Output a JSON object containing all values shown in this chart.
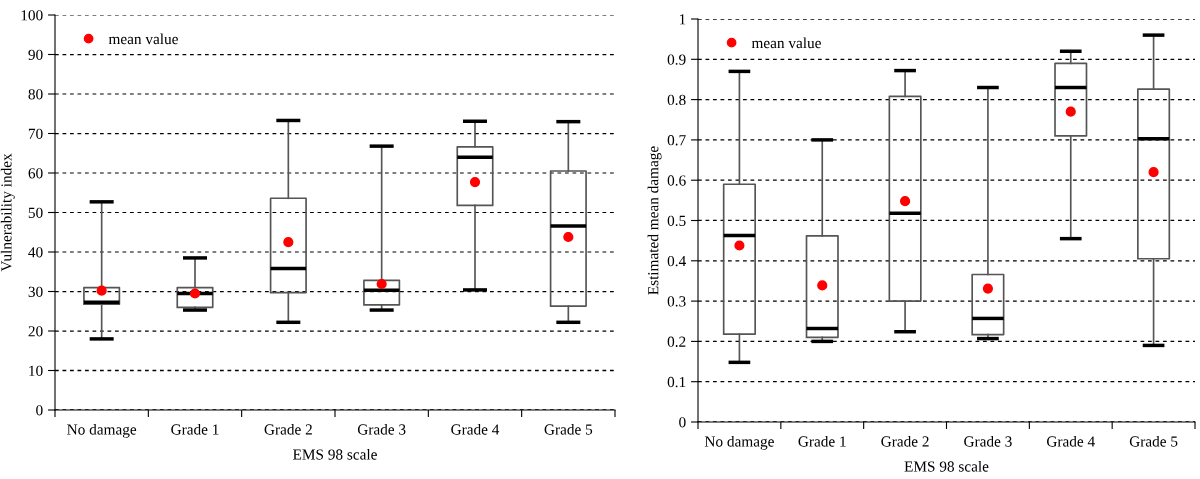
{
  "chart_data": [
    {
      "type": "box",
      "xlabel": "EMS 98 scale",
      "ylabel": "Vulnerability index",
      "categories": [
        "No damage",
        "Grade 1",
        "Grade 2",
        "Grade 3",
        "Grade 4",
        "Grade 5"
      ],
      "ylim": [
        0,
        100
      ],
      "yticks": [
        0,
        10,
        20,
        30,
        40,
        50,
        60,
        70,
        80,
        90,
        100
      ],
      "grid": "y",
      "legend": "top left",
      "boxes": [
        {
          "low": 18,
          "q1": 26.8,
          "median": 27.3,
          "q3": 31,
          "high": 52.7
        },
        {
          "low": 25.3,
          "q1": 26,
          "median": 29.5,
          "q3": 31,
          "high": 38.5
        },
        {
          "low": 22.2,
          "q1": 29.7,
          "median": 35.8,
          "q3": 53.6,
          "high": 73.3
        },
        {
          "low": 25.3,
          "q1": 26.6,
          "median": 30.3,
          "q3": 32.8,
          "high": 66.8
        },
        {
          "low": 30.4,
          "q1": 51.8,
          "median": 64,
          "q3": 66.6,
          "high": 73.1
        },
        {
          "low": 22.2,
          "q1": 26.3,
          "median": 46.6,
          "q3": 60.5,
          "high": 73
        }
      ],
      "series": [
        {
          "type": "scatter",
          "name": "mean value",
          "color": "#ff0000",
          "marker": "circle",
          "x": [
            "No damage",
            "Grade 1",
            "Grade 2",
            "Grade 3",
            "Grade 4",
            "Grade 5"
          ],
          "values": [
            30.2,
            29.5,
            42.5,
            31.9,
            57.7,
            43.8
          ]
        }
      ]
    },
    {
      "type": "box",
      "xlabel": "EMS 98 scale",
      "ylabel": "Estimated mean damage",
      "categories": [
        "No damage",
        "Grade 1",
        "Grade 2",
        "Grade 3",
        "Grade 4",
        "Grade 5"
      ],
      "ylim": [
        0,
        1
      ],
      "yticks": [
        0,
        0.1,
        0.2,
        0.3,
        0.4,
        0.5,
        0.6,
        0.7,
        0.8,
        0.9,
        {
          "value": 1,
          "label": "1"
        }
      ],
      "grid": "y",
      "legend": "top left",
      "boxes": [
        {
          "low": 0.148,
          "q1": 0.218,
          "median": 0.463,
          "q3": 0.59,
          "high": 0.87
        },
        {
          "low": 0.2,
          "q1": 0.21,
          "median": 0.232,
          "q3": 0.462,
          "high": 0.7
        },
        {
          "low": 0.224,
          "q1": 0.3,
          "median": 0.518,
          "q3": 0.808,
          "high": 0.872
        },
        {
          "low": 0.207,
          "q1": 0.217,
          "median": 0.257,
          "q3": 0.366,
          "high": 0.83
        },
        {
          "low": 0.455,
          "q1": 0.71,
          "median": 0.83,
          "q3": 0.89,
          "high": 0.92
        },
        {
          "low": 0.19,
          "q1": 0.405,
          "median": 0.703,
          "q3": 0.826,
          "high": 0.96
        }
      ],
      "series": [
        {
          "type": "scatter",
          "name": "mean value",
          "color": "#ff0000",
          "marker": "circle",
          "x": [
            "No damage",
            "Grade 1",
            "Grade 2",
            "Grade 3",
            "Grade 4",
            "Grade 5"
          ],
          "values": [
            0.438,
            0.339,
            0.548,
            0.331,
            0.77,
            0.62
          ]
        }
      ]
    }
  ]
}
